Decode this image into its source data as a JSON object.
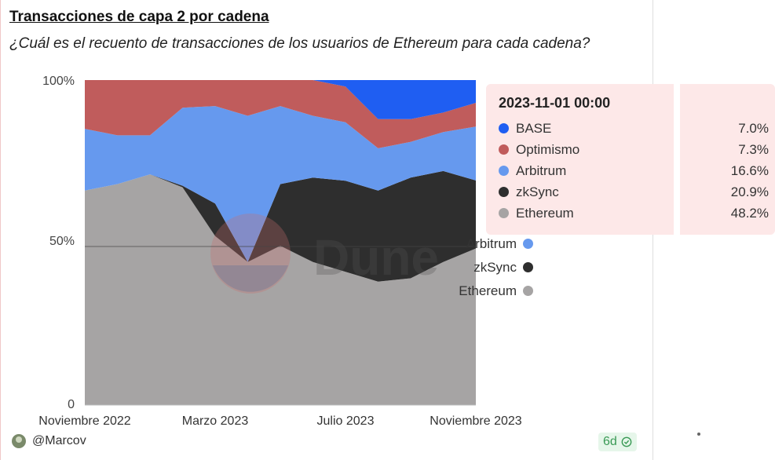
{
  "title": "Transacciones de capa 2 por cadena",
  "subtitle": "¿Cuál es el recuento de transacciones de los usuarios de Ethereum para cada cadena?",
  "chart_data": {
    "type": "area",
    "stacked_percent": true,
    "x": [
      "2022-11",
      "2022-12",
      "2023-01",
      "2023-02",
      "2023-03",
      "2023-04",
      "2023-05",
      "2023-06",
      "2023-07",
      "2023-08",
      "2023-09",
      "2023-10",
      "2023-11"
    ],
    "x_tick_labels": [
      "Noviembre 2022",
      "Marzo 2023",
      "Julio 2023",
      "Noviembre 2023"
    ],
    "x_tick_indices": [
      0,
      4,
      8,
      12
    ],
    "y_tick_labels": [
      "100%",
      "50%",
      "0"
    ],
    "ylim": [
      0,
      100
    ],
    "series": [
      {
        "name": "Ethereum",
        "color": "#a6a4a4",
        "values": [
          66,
          68,
          71,
          67,
          52,
          44,
          49,
          44,
          41,
          38,
          39,
          44,
          48.2
        ]
      },
      {
        "name": "zkSync",
        "color": "#2e2e2e",
        "values": [
          0,
          0,
          0,
          0.5,
          10,
          0,
          19,
          26,
          28,
          28,
          31,
          28,
          20.9
        ]
      },
      {
        "name": "Arbitrum",
        "color": "#6699ee",
        "values": [
          19,
          15,
          12,
          24,
          30,
          45,
          24,
          19,
          18,
          13,
          11,
          12,
          16.6
        ]
      },
      {
        "name": "Optimismo",
        "color": "#c05c5c",
        "values": [
          15,
          17,
          17,
          8.5,
          8,
          11,
          8,
          11,
          11,
          9,
          7,
          6,
          7.3
        ]
      },
      {
        "name": "BASE",
        "color": "#1f5ef2",
        "values": [
          0,
          0,
          0,
          0,
          0,
          0,
          0,
          0,
          2,
          12,
          12,
          10,
          7.0
        ]
      }
    ],
    "legend": {
      "items": [
        {
          "name": "Arbitrum",
          "color": "#6699ee"
        },
        {
          "name": "zkSync",
          "color": "#2e2e2e"
        },
        {
          "name": "Ethereum",
          "color": "#a6a4a4"
        }
      ]
    },
    "tooltip": {
      "title": "2023-11-01 00:00",
      "rows": [
        {
          "name": "BASE",
          "color": "#1f5ef2",
          "value": "7.0%"
        },
        {
          "name": "Optimismo",
          "color": "#c05c5c",
          "value": "7.3%"
        },
        {
          "name": "Arbitrum",
          "color": "#6699ee",
          "value": "16.6%"
        },
        {
          "name": "zkSync",
          "color": "#2e2e2e",
          "value": "20.9%"
        },
        {
          "name": "Ethereum",
          "color": "#a6a4a4",
          "value": "48.2%"
        }
      ]
    }
  },
  "footer": {
    "author": "@Marcov",
    "age_badge": "6d"
  }
}
